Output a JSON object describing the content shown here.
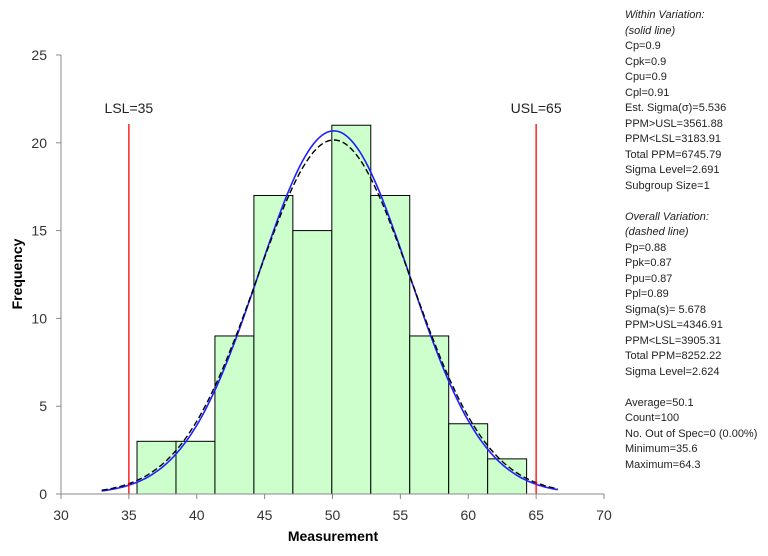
{
  "chart_data": {
    "type": "histogram",
    "xlabel": "Measurement",
    "ylabel": "Frequency",
    "xlim": [
      30,
      70
    ],
    "ylim": [
      0,
      25
    ],
    "xticks": [
      30,
      35,
      40,
      45,
      50,
      55,
      60,
      65,
      70
    ],
    "yticks": [
      0,
      5,
      10,
      15,
      20,
      25
    ],
    "grid": false,
    "bin_edges": [
      35.6,
      38.47,
      41.34,
      44.21,
      47.08,
      49.95,
      52.82,
      55.69,
      58.56,
      61.43,
      64.3
    ],
    "counts": [
      3,
      3,
      9,
      17,
      15,
      21,
      17,
      9,
      4,
      2
    ],
    "bar_color": "#ccffcc",
    "spec_limits": [
      {
        "label": "LSL=35",
        "value": 35,
        "color": "#ff0000"
      },
      {
        "label": "USL=65",
        "value": 65,
        "color": "#ff0000"
      }
    ],
    "curves": [
      {
        "style": "solid",
        "color": "#1f1fff",
        "mean": 50.1,
        "sigma": 5.536
      },
      {
        "style": "dashed",
        "color": "#000000",
        "mean": 50.1,
        "sigma": 5.678
      }
    ]
  },
  "stats": {
    "within": [
      "Within Variation:",
      "(solid line)"
    ],
    "within_lines": [
      "Cp=0.9",
      "Cpk=0.9",
      "Cpu=0.9",
      "Cpl=0.91",
      "Est. Sigma(σ)=5.536",
      "PPM>USL=3561.88",
      "PPM<LSL=3183.91",
      "Total PPM=6745.79",
      "Sigma Level=2.691",
      "Subgroup Size=1"
    ],
    "overall": [
      "Overall Variation:",
      "(dashed line)"
    ],
    "overall_lines": [
      "Pp=0.88",
      "Ppk=0.87",
      "Ppu=0.87",
      "Ppl=0.89",
      "Sigma(s)= 5.678",
      "PPM>USL=4346.91",
      "PPM<LSL=3905.31",
      "Total PPM=8252.22",
      "Sigma Level=2.624"
    ],
    "summary_lines": [
      "Average=50.1",
      "Count=100",
      "No. Out of Spec=0 (0.00%)",
      "Minimum=35.6",
      "Maximum=64.3"
    ]
  }
}
